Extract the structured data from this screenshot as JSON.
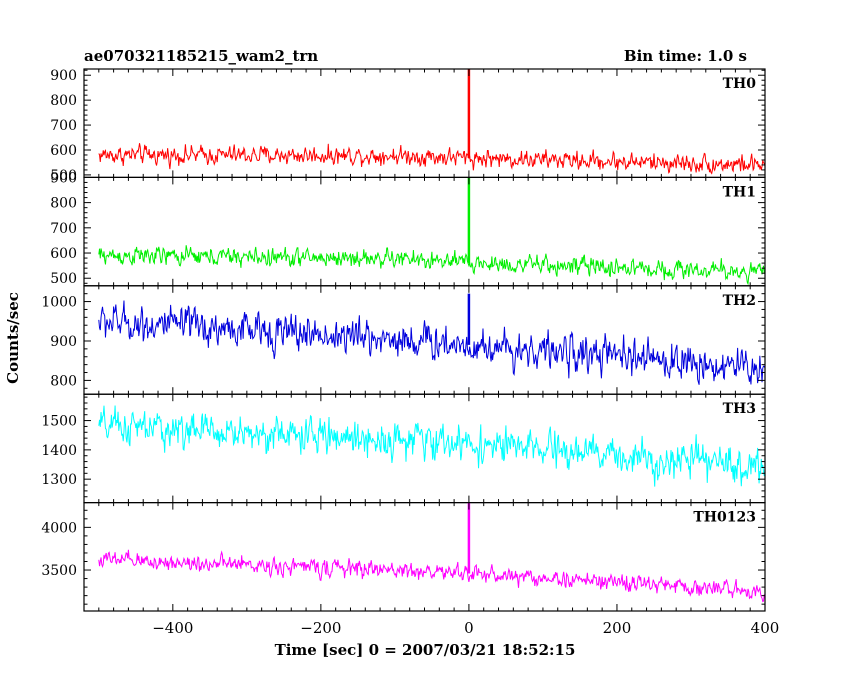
{
  "header": {
    "obs_id": "ae070321185215_wam2_trn",
    "bin_time": "Bin time: 1.0 s"
  },
  "chart_data": {
    "type": "line",
    "xlabel": "Time [sec] 0 = 2007/03/21 18:52:15",
    "ylabel": "Counts/sec",
    "xlim": [
      -520,
      400
    ],
    "x_ticks": [
      -400,
      -200,
      0,
      200,
      400
    ],
    "x_tick_labels": [
      "−400",
      "−200",
      "0",
      "200",
      "400"
    ],
    "x_start": -500,
    "x_end": 400,
    "bin": 1.0,
    "grid": false,
    "panels": [
      {
        "name": "TH0",
        "color": "#ff0000",
        "ylim": [
          490,
          925
        ],
        "yticks": [
          500,
          600,
          700,
          800,
          900
        ],
        "trend": [
          [
            -500,
            580
          ],
          [
            -100,
            578
          ],
          [
            0,
            568
          ],
          [
            400,
            540
          ]
        ],
        "noise_amplitude": 40,
        "spike": {
          "x": 0,
          "y": 925
        }
      },
      {
        "name": "TH1",
        "color": "#00ee00",
        "ylim": [
          470,
          900
        ],
        "yticks": [
          500,
          600,
          700,
          800,
          900
        ],
        "trend": [
          [
            -500,
            590
          ],
          [
            -100,
            578
          ],
          [
            0,
            560
          ],
          [
            400,
            525
          ]
        ],
        "noise_amplitude": 40,
        "spike": {
          "x": 0,
          "y": 900
        }
      },
      {
        "name": "TH2",
        "color": "#0000dd",
        "ylim": [
          765,
          1040
        ],
        "yticks": [
          800,
          900,
          1000
        ],
        "trend": [
          [
            -500,
            950
          ],
          [
            -100,
            905
          ],
          [
            0,
            890
          ],
          [
            400,
            830
          ]
        ],
        "noise_amplitude": 50,
        "spike": {
          "x": 0,
          "y": 1020
        }
      },
      {
        "name": "TH3",
        "color": "#00ffff",
        "ylim": [
          1220,
          1590
        ],
        "yticks": [
          1300,
          1400,
          1500
        ],
        "trend": [
          [
            -500,
            1480
          ],
          [
            -100,
            1435
          ],
          [
            0,
            1420
          ],
          [
            400,
            1340
          ]
        ],
        "noise_amplitude": 65,
        "spike": null
      },
      {
        "name": "TH0123",
        "color": "#ff00ff",
        "ylim": [
          3020,
          4290
        ],
        "yticks": [
          3500,
          4000
        ],
        "trend": [
          [
            -500,
            3620
          ],
          [
            -100,
            3500
          ],
          [
            0,
            3460
          ],
          [
            400,
            3250
          ]
        ],
        "noise_amplitude": 110,
        "spike": {
          "x": 0,
          "y": 4290
        }
      }
    ]
  }
}
